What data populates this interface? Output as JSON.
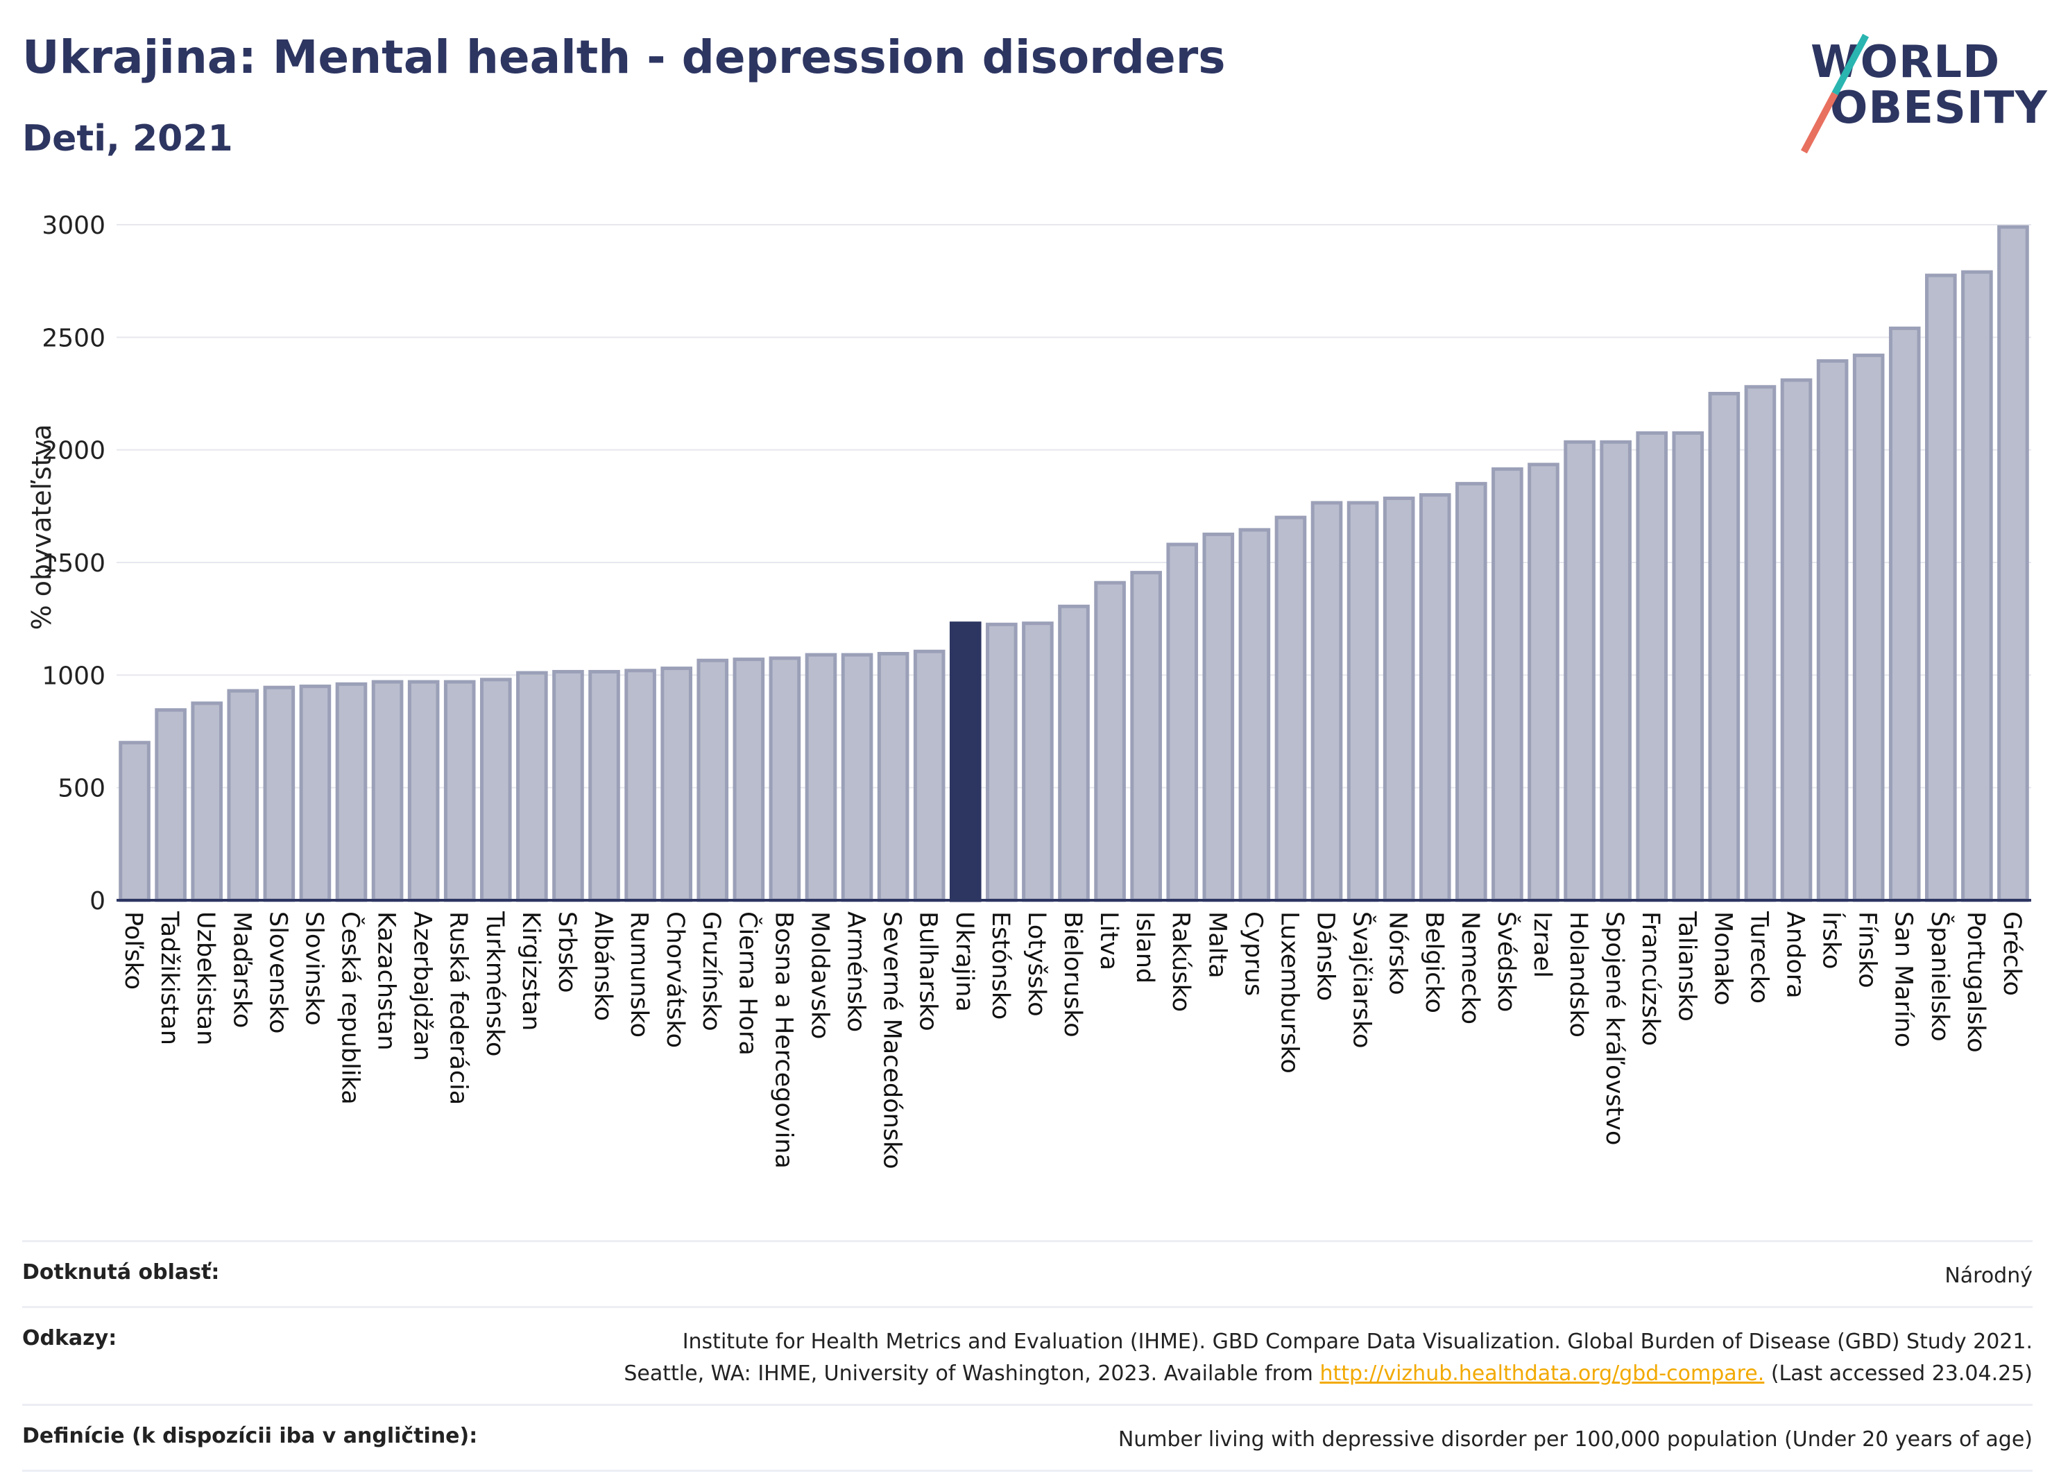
{
  "header": {
    "title": "Ukrajina: Mental health - depression disorders",
    "subtitle": "Deti, 2021"
  },
  "logo": {
    "line1": "WORLD",
    "line2": "OBESITY",
    "colors": {
      "teal": "#2ab5b0",
      "coral": "#e8705f"
    }
  },
  "colors": {
    "bar": "#b9bdcd",
    "bar_border": "#9ba0b8",
    "highlight": "#2d3561",
    "axis": "#2d3561",
    "grid": "#e6e8ee"
  },
  "chart_data": {
    "type": "bar",
    "ylabel": "% obyvateľstva",
    "ylim": [
      0,
      3000
    ],
    "yticks": [
      0,
      500,
      1000,
      1500,
      2000,
      2500,
      3000
    ],
    "grid": true,
    "highlight": "Ukrajina",
    "categories": [
      "Poľsko",
      "Tadžikistan",
      "Uzbekistan",
      "Maďarsko",
      "Slovensko",
      "Slovinsko",
      "Česká republika",
      "Kazachstan",
      "Azerbajdžan",
      "Ruská federácia",
      "Turkménsko",
      "Kirgizstan",
      "Srbsko",
      "Albánsko",
      "Rumunsko",
      "Chorvátsko",
      "Gruzínsko",
      "Čierna Hora",
      "Bosna a Hercegovina",
      "Moldavsko",
      "Arménsko",
      "Severné Macedónsko",
      "Bulharsko",
      "Ukrajina",
      "Estónsko",
      "Lotyšsko",
      "Bielorusko",
      "Litva",
      "Island",
      "Rakúsko",
      "Malta",
      "Cyprus",
      "Luxembursko",
      "Dánsko",
      "Švajčiarsko",
      "Nórsko",
      "Belgicko",
      "Nemecko",
      "Švédsko",
      "Izrael",
      "Holandsko",
      "Spojené kráľovstvo",
      "Francúzsko",
      "Taliansko",
      "Monako",
      "Turecko",
      "Andora",
      "Írsko",
      "Fínsko",
      "San Maríno",
      "Španielsko",
      "Portugalsko",
      "Grécko"
    ],
    "values": [
      700,
      845,
      875,
      930,
      945,
      950,
      960,
      970,
      970,
      970,
      980,
      1010,
      1015,
      1015,
      1020,
      1030,
      1065,
      1070,
      1075,
      1090,
      1090,
      1095,
      1105,
      1230,
      1225,
      1230,
      1305,
      1410,
      1455,
      1580,
      1625,
      1645,
      1700,
      1765,
      1765,
      1785,
      1800,
      1850,
      1915,
      1935,
      2035,
      2035,
      2075,
      2075,
      2250,
      2280,
      2310,
      2395,
      2420,
      2540,
      2775,
      2790,
      2990
    ]
  },
  "footer": {
    "rows": [
      {
        "key": "Dotknutá oblasť:",
        "value": "Národný"
      },
      {
        "key": "Odkazy:",
        "line1": "Institute for Health Metrics and Evaluation (IHME). GBD Compare Data Visualization. Global Burden of Disease (GBD) Study 2021.",
        "line2_pre": "Seattle, WA: IHME, University of Washington, 2023. Available from ",
        "link": "http://vizhub.healthdata.org/gbd-compare.",
        "line2_post": " (Last accessed 23.04.25)"
      },
      {
        "key": "Definície (k dispozícii iba v angličtine):",
        "value": "Number living with depressive disorder per 100,000 population (Under 20 years of age)"
      }
    ]
  }
}
